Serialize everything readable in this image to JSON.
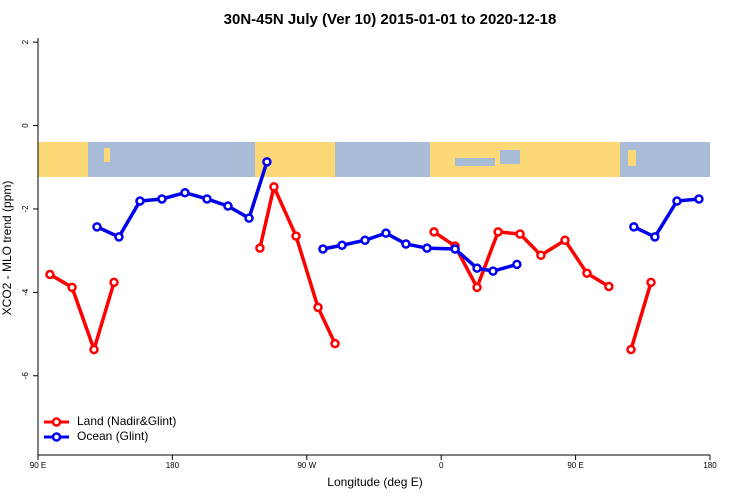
{
  "chart_data": {
    "type": "line",
    "title": "30N-45N July (Ver 10)   2015-01-01 to 2020-12-18",
    "x_label": "Longitude (deg E)",
    "y_label": "XCO2 - MLO trend (ppm)",
    "xlim": [
      90,
      540
    ],
    "xticks": [
      {
        "value": 90,
        "label": "90 E"
      },
      {
        "value": 180,
        "label": "180"
      },
      {
        "value": 270,
        "label": "90 W"
      },
      {
        "value": 360,
        "label": "0"
      },
      {
        "value": 450,
        "label": "90 E"
      },
      {
        "value": 540,
        "label": "180"
      }
    ],
    "ylim": [
      -7.9,
      2.1
    ],
    "yticks": [
      -6,
      -4,
      -2,
      0,
      2
    ],
    "legend": "bottom-left",
    "series": [
      {
        "name": "Land (Nadir&Glint)",
        "color": "#ff0000",
        "x": [
          98,
          112.8,
          127.5,
          140.9,
          null,
          238.6,
          248,
          262.8,
          277.5,
          288.9,
          null,
          355.2,
          369.3,
          384,
          398.1,
          412.8,
          426.8,
          442.9,
          457.6,
          472.3,
          null,
          487.1,
          500.5
        ],
        "values": [
          -3.57,
          -3.88,
          -5.37,
          -3.76,
          null,
          -2.94,
          -1.47,
          -2.65,
          -4.36,
          -5.23,
          null,
          -2.55,
          -2.89,
          -3.88,
          -2.55,
          -2.6,
          -3.11,
          -2.75,
          -3.54,
          -3.86,
          null,
          -5.37,
          -3.76
        ]
      },
      {
        "name": "Ocean (Glint)",
        "color": "#0000ee",
        "x": [
          129.5,
          144.2,
          158.3,
          173,
          188.4,
          203.2,
          217.2,
          231.3,
          243.3,
          null,
          280.8,
          293.6,
          309,
          323,
          336.4,
          350.5,
          369.3,
          384,
          394.7,
          410.7,
          null,
          489,
          503.1,
          517.9,
          532.6
        ],
        "values": [
          -2.43,
          -2.67,
          -1.81,
          -1.76,
          -1.61,
          -1.76,
          -1.93,
          -2.22,
          -0.87,
          null,
          -2.96,
          -2.87,
          -2.75,
          -2.58,
          -2.84,
          -2.94,
          -2.96,
          -3.42,
          -3.49,
          -3.33,
          null,
          -2.43,
          -2.67,
          -1.81,
          -1.76
        ]
      }
    ]
  }
}
